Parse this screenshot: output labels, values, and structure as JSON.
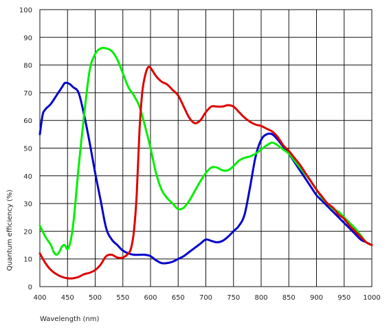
{
  "chart_data": {
    "type": "line",
    "title": "",
    "xlabel": "Wavelength (nm)",
    "ylabel": "Quantum efficiency (%)",
    "xlim": [
      400,
      1000
    ],
    "ylim": [
      0,
      100
    ],
    "xticks": [
      400,
      450,
      500,
      550,
      600,
      650,
      700,
      750,
      800,
      850,
      900,
      950,
      1000
    ],
    "yticks": [
      0,
      10,
      20,
      30,
      40,
      50,
      60,
      70,
      80,
      90,
      100
    ],
    "grid": true,
    "legend": "none",
    "series": [
      {
        "color": "#0000cc",
        "x": [
          400,
          405,
          410,
          420,
          430,
          440,
          445,
          450,
          455,
          460,
          470,
          480,
          490,
          500,
          510,
          520,
          530,
          540,
          550,
          560,
          570,
          580,
          590,
          600,
          610,
          620,
          630,
          640,
          650,
          660,
          670,
          680,
          690,
          700,
          710,
          720,
          730,
          740,
          750,
          760,
          770,
          780,
          790,
          800,
          810,
          820,
          830,
          840,
          850,
          860,
          870,
          880,
          890,
          900,
          910,
          920,
          930,
          940,
          950,
          960,
          970,
          980,
          990,
          1000
        ],
        "y": [
          55,
          62,
          64,
          66,
          69,
          72,
          73.5,
          73.5,
          73,
          72,
          70,
          62,
          52,
          41,
          31,
          21,
          17,
          15,
          13,
          12,
          11.5,
          11.5,
          11.5,
          11,
          9.5,
          8.5,
          8.5,
          9,
          10,
          11,
          12.5,
          14,
          15.5,
          17,
          16.5,
          16,
          16.5,
          18,
          20,
          22,
          26,
          36,
          47,
          53,
          55,
          55,
          53,
          50.5,
          48,
          45,
          42,
          39,
          36,
          33,
          31,
          29,
          27,
          25,
          23,
          21,
          19,
          17,
          16,
          15
        ]
      },
      {
        "color": "#00ee00",
        "x": [
          400,
          405,
          410,
          420,
          425,
          430,
          435,
          440,
          445,
          450,
          455,
          460,
          465,
          470,
          480,
          490,
          500,
          510,
          520,
          530,
          540,
          550,
          560,
          570,
          580,
          590,
          600,
          610,
          620,
          630,
          640,
          650,
          660,
          670,
          680,
          690,
          700,
          710,
          720,
          730,
          740,
          750,
          760,
          770,
          780,
          790,
          800,
          810,
          820,
          830,
          840,
          850,
          860,
          870,
          880,
          890,
          900,
          910,
          920,
          930,
          940,
          950,
          960,
          970,
          980,
          990,
          1000
        ],
        "y": [
          22,
          20,
          18,
          15,
          12.5,
          11.5,
          12.5,
          14.5,
          15,
          13.5,
          16,
          22,
          32,
          43,
          62,
          78,
          84,
          86,
          86,
          85,
          82,
          77,
          72,
          69,
          65,
          58,
          50,
          41,
          35,
          32,
          30,
          28,
          28.5,
          31,
          34.5,
          38,
          41,
          43,
          43,
          42,
          42,
          43.5,
          45.5,
          46.5,
          47,
          48,
          49.5,
          51,
          52,
          51,
          49.5,
          48,
          45.5,
          43,
          40.5,
          38,
          35,
          32,
          30,
          28,
          27,
          25,
          23,
          21,
          18.5,
          16,
          15
        ]
      },
      {
        "color": "#dd0000",
        "x": [
          400,
          410,
          420,
          430,
          440,
          450,
          460,
          470,
          480,
          490,
          500,
          510,
          520,
          530,
          540,
          550,
          560,
          565,
          570,
          575,
          580,
          585,
          590,
          595,
          600,
          610,
          620,
          630,
          640,
          650,
          660,
          670,
          680,
          690,
          700,
          710,
          720,
          730,
          740,
          750,
          760,
          770,
          780,
          790,
          800,
          810,
          820,
          830,
          840,
          850,
          860,
          870,
          880,
          890,
          900,
          910,
          920,
          930,
          940,
          950,
          960,
          970,
          980,
          990,
          1000
        ],
        "y": [
          12,
          8.5,
          6,
          4.5,
          3.5,
          3,
          3,
          3.5,
          4.5,
          5,
          6,
          8,
          11,
          11.5,
          10.5,
          10.5,
          12,
          14,
          20,
          33,
          56,
          70,
          76,
          79,
          79,
          76,
          74,
          73,
          71,
          69,
          65,
          61,
          59,
          60,
          63,
          65,
          65,
          65,
          65.5,
          65,
          63,
          61,
          59.5,
          58.5,
          58,
          57,
          56,
          54,
          51,
          49,
          46.5,
          44,
          41,
          38,
          35,
          32.5,
          30,
          28.5,
          26,
          24.5,
          22,
          20,
          18,
          16,
          15
        ]
      }
    ]
  }
}
